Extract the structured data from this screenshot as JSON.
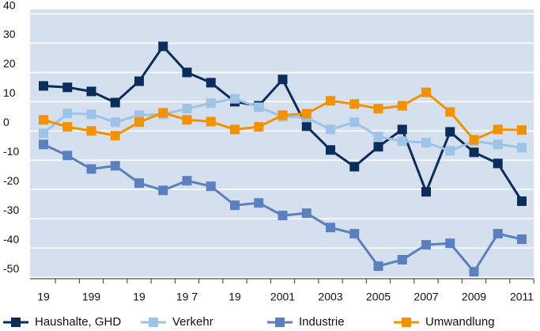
{
  "chart_data": {
    "type": "line",
    "categories": [
      "19",
      null,
      "199",
      null,
      "19",
      null,
      "19 7",
      null,
      "19",
      null,
      "2001",
      null,
      "2003",
      null,
      "2005",
      null,
      "2007",
      null,
      "2009",
      null,
      "2011"
    ],
    "series": [
      {
        "name": "Haushalte, GHD",
        "color": "#0b2d5c",
        "values": [
          15.4,
          14.9,
          13.5,
          9.7,
          17,
          28.9,
          20,
          16.5,
          10,
          8.6,
          17.6,
          1.6,
          -6.5,
          -12.2,
          -5.4,
          0.5,
          -20.8,
          -0.3,
          -7.3,
          -11.1,
          -24
        ]
      },
      {
        "name": "Verkehr",
        "color": "#9dc3e6",
        "values": [
          -0.8,
          6,
          5.7,
          3,
          5.4,
          5.7,
          7.6,
          9.5,
          11,
          8.1,
          4.9,
          4.6,
          0.5,
          3,
          -1.9,
          -3.5,
          -4,
          -6.8,
          -3.5,
          -4.6,
          -5.7
        ]
      },
      {
        "name": "Industrie",
        "color": "#5b7fbf",
        "values": [
          -4.6,
          -8.4,
          -13,
          -11.9,
          -17.8,
          -20.3,
          -17,
          -18.9,
          -25.4,
          -24.6,
          -28.9,
          -28.1,
          -33,
          -35.1,
          -46.2,
          -44,
          -38.9,
          -38.4,
          -48.1,
          -35.1,
          -37
        ]
      },
      {
        "name": "Umwandlung",
        "color": "#f39200",
        "values": [
          3.8,
          1.4,
          0,
          -1.6,
          3,
          6.2,
          3.8,
          3.2,
          0.5,
          1.4,
          5.4,
          5.9,
          10.3,
          9.2,
          7.6,
          8.6,
          13.2,
          6.5,
          -3,
          0.5,
          0.3
        ]
      }
    ],
    "ylim": [
      -50.5,
      41.5
    ],
    "yticks": [
      -50,
      -40,
      -30,
      -20,
      -10,
      0,
      10,
      20,
      30,
      40
    ],
    "grid": true,
    "legend": "bottom"
  }
}
